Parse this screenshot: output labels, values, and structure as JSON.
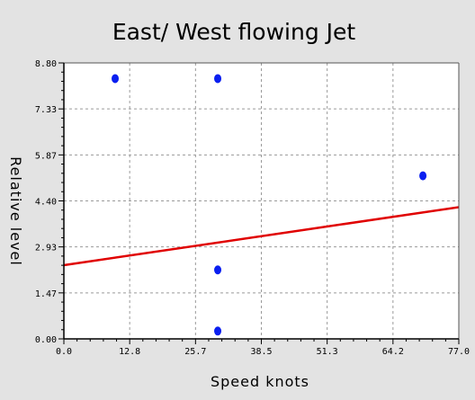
{
  "chart_data": {
    "type": "scatter",
    "title": "East/ West flowing Jet",
    "xlabel": "Speed knots",
    "ylabel": "Relative level",
    "xlim": [
      0.0,
      77.0
    ],
    "ylim": [
      0.0,
      8.8
    ],
    "x_ticks": [
      "0.0",
      "12.8",
      "25.7",
      "38.5",
      "51.3",
      "64.2",
      "77.0"
    ],
    "y_ticks": [
      "0.00",
      "1.47",
      "2.93",
      "4.40",
      "5.87",
      "7.33",
      "8.80"
    ],
    "grid": true,
    "series": [
      {
        "points": [
          {
            "x": 10,
            "y": 8.3
          },
          {
            "x": 30,
            "y": 8.3
          },
          {
            "x": 70,
            "y": 5.2
          },
          {
            "x": 30,
            "y": 2.2
          },
          {
            "x": 30,
            "y": 0.25
          }
        ],
        "color": "#0a1ff0"
      }
    ],
    "trend_line": {
      "x": [
        0.0,
        77.0
      ],
      "y": [
        2.35,
        4.2
      ],
      "color": "#e00000"
    }
  }
}
